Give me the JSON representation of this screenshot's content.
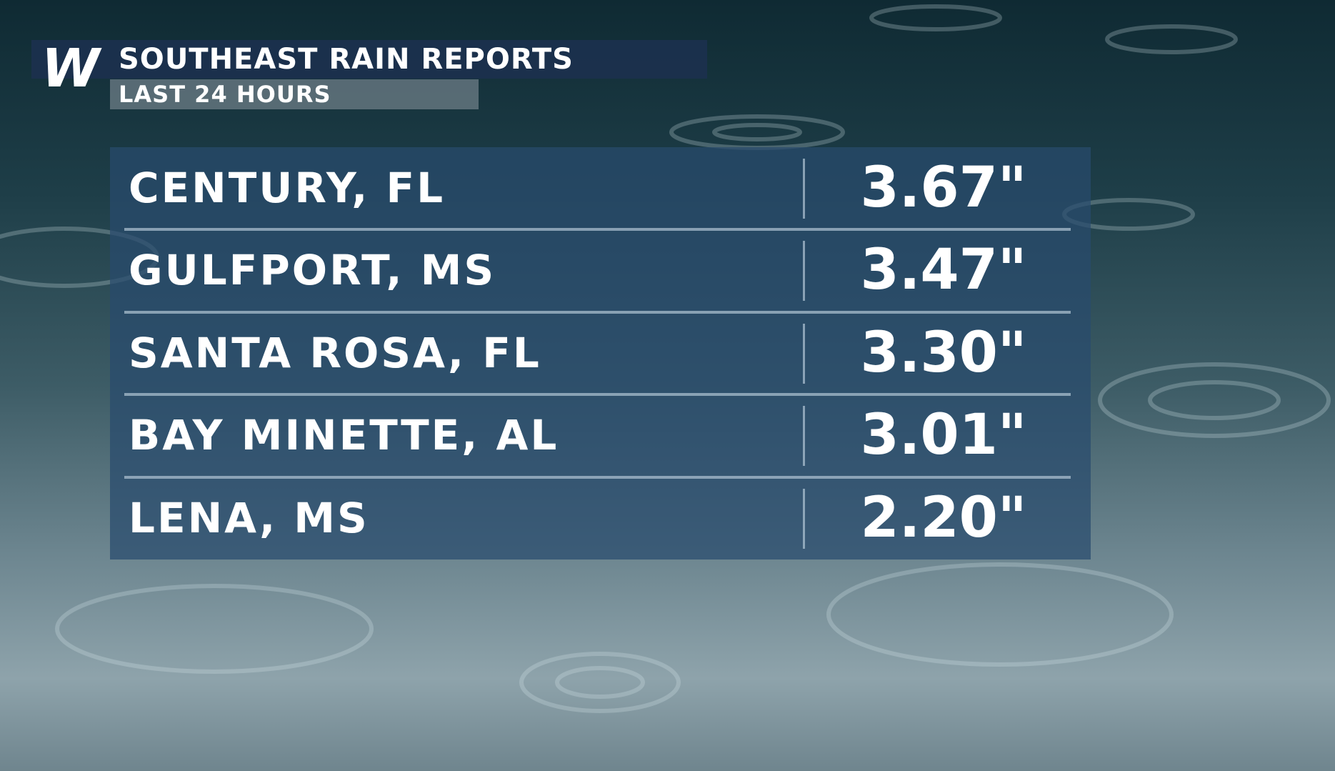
{
  "header": {
    "logo": "W",
    "title": "SOUTHEAST RAIN REPORTS",
    "subtitle": "LAST 24 HOURS"
  },
  "table": {
    "rows": [
      [
        "CENTURY, FL",
        "3.67\""
      ],
      [
        "GULFPORT, MS",
        "3.47\""
      ],
      [
        "SANTA ROSA, FL",
        "3.30\""
      ],
      [
        "BAY MINETTE, AL",
        "3.01\""
      ],
      [
        "LENA, MS",
        "2.20\""
      ]
    ]
  }
}
